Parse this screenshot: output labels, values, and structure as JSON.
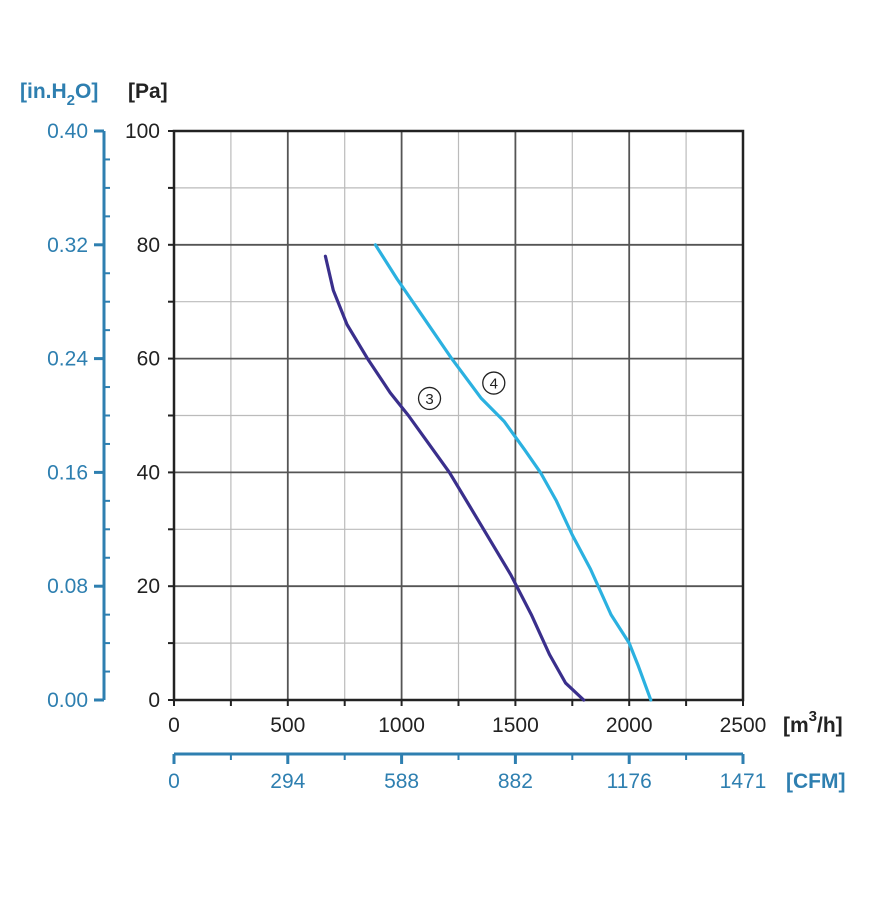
{
  "chart_data": {
    "type": "line",
    "x_axis": {
      "range": [
        0,
        2500
      ],
      "ticks": [
        "0",
        "500",
        "1000",
        "1500",
        "2000",
        "2500"
      ],
      "unit_base": "[m",
      "unit_sup": "3",
      "unit_tail": "/h]"
    },
    "x2_axis": {
      "ticks": [
        "0",
        "294",
        "588",
        "882",
        "1176",
        "1471"
      ],
      "unit": "[CFM]"
    },
    "y_axis": {
      "range": [
        0,
        100
      ],
      "ticks": [
        "0",
        "20",
        "40",
        "60",
        "80",
        "100"
      ],
      "unit": "[Pa]"
    },
    "y2_axis": {
      "ticks": [
        "0.00",
        "0.08",
        "0.16",
        "0.24",
        "0.32",
        "0.40"
      ],
      "unit_base": "[in.H",
      "unit_sub": "2",
      "unit_tail": "O]"
    },
    "grid": true,
    "series": [
      {
        "name": "3",
        "color": "#3a2f8c",
        "points": [
          [
            665,
            78
          ],
          [
            700,
            72
          ],
          [
            760,
            66
          ],
          [
            850,
            60
          ],
          [
            950,
            54
          ],
          [
            1030,
            50
          ],
          [
            1120,
            45
          ],
          [
            1210,
            40
          ],
          [
            1300,
            34
          ],
          [
            1390,
            28
          ],
          [
            1480,
            22
          ],
          [
            1570,
            15
          ],
          [
            1650,
            8
          ],
          [
            1720,
            3
          ],
          [
            1800,
            0
          ]
        ]
      },
      {
        "name": "4",
        "color": "#2bb1e0",
        "points": [
          [
            885,
            80
          ],
          [
            980,
            74
          ],
          [
            1100,
            67
          ],
          [
            1220,
            60
          ],
          [
            1350,
            53
          ],
          [
            1450,
            49
          ],
          [
            1540,
            44
          ],
          [
            1610,
            40
          ],
          [
            1680,
            35
          ],
          [
            1750,
            29
          ],
          [
            1830,
            23
          ],
          [
            1920,
            15
          ],
          [
            2000,
            10
          ],
          [
            2040,
            6
          ],
          [
            2095,
            0
          ]
        ]
      }
    ],
    "colors": {
      "axis": "#222222",
      "grid_major": "#555555",
      "grid_minor": "#bbbbbb",
      "secondary": "#2e7fb0"
    }
  }
}
